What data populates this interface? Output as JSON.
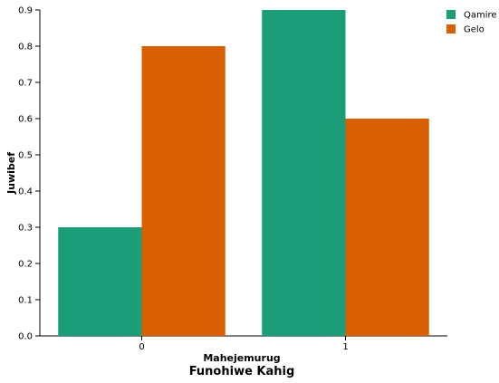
{
  "chart_data": {
    "type": "bar",
    "categories": [
      "0",
      "1"
    ],
    "series": [
      {
        "name": "Qamire",
        "values": [
          0.3,
          0.9
        ],
        "color": "#1b9e77"
      },
      {
        "name": "Gelo",
        "values": [
          0.8,
          0.6
        ],
        "color": "#d95f02"
      }
    ],
    "xlabel": "Mahejemurug",
    "ylabel": "Juwibef",
    "title": "Funohiwe Kahig",
    "ylim": [
      0,
      0.9
    ],
    "yticks": [
      "0.0",
      "0.1",
      "0.2",
      "0.3",
      "0.4",
      "0.5",
      "0.6",
      "0.7",
      "0.8",
      "0.9"
    ],
    "grid": false,
    "legend": "top-right"
  }
}
